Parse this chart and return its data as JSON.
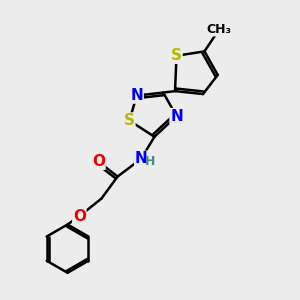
{
  "background_color": "#ececec",
  "bond_color": "#000000",
  "bond_width": 1.8,
  "atom_colors": {
    "S": "#b8b800",
    "N": "#0000ee",
    "O": "#ee0000",
    "C": "#000000",
    "H": "#4a8a8a"
  },
  "font_size": 10,
  "figsize": [
    3.0,
    3.0
  ],
  "dpi": 100
}
